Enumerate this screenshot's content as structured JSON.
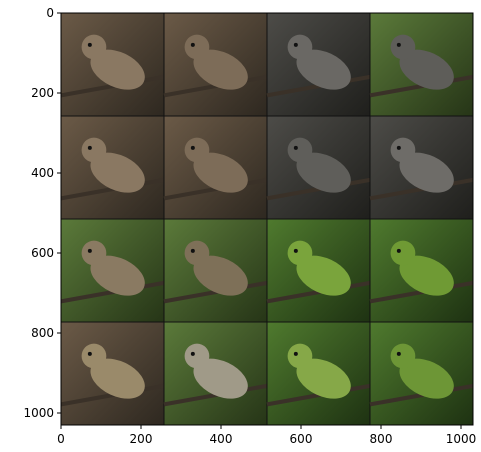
{
  "chart_data": {
    "type": "image",
    "xlim": [
      0,
      1030
    ],
    "ylim": [
      1030,
      0
    ],
    "xticks": [
      0,
      200,
      400,
      600,
      800,
      1000
    ],
    "yticks": [
      0,
      200,
      400,
      600,
      800,
      1000
    ]
  }
}
